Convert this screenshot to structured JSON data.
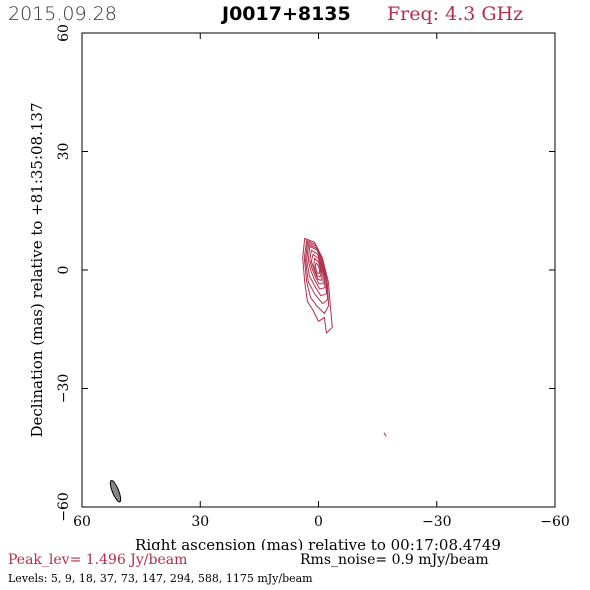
{
  "header": {
    "date": "2015.09.28",
    "source": "J0017+8135",
    "frequency": "Freq: 4.3 GHz"
  },
  "footer": {
    "peak": "Peak_lev=  1.496 Jy/beam",
    "rms": "Rms_noise=  0.9 mJy/beam",
    "levels": "Levels:   5,   9,  18,  37,  73,  147,  294,  588,  1175 mJy/beam"
  },
  "colors": {
    "contour": "#b0304c",
    "beam_fill": "#888888",
    "axis": "#000000"
  },
  "chart_data": {
    "type": "contour",
    "title": "J0017+8135",
    "xlabel": "Right ascension (mas) relative to 00:17:08.4749",
    "ylabel": "Declination (mas) relative to +81:35:08.137",
    "xlim": [
      60,
      -60
    ],
    "ylim": [
      -60,
      60
    ],
    "x_ticks": [
      "60",
      "30",
      "0",
      "−30",
      "−60"
    ],
    "y_ticks": [
      "60",
      "30",
      "0",
      "−30",
      "−60"
    ],
    "x_tick_values": [
      60,
      30,
      0,
      -30,
      -60
    ],
    "y_tick_values": [
      60,
      30,
      0,
      -30,
      -60
    ],
    "peak_level_jy_per_beam": 1.496,
    "rms_noise_mjy_per_beam": 0.9,
    "contour_levels_mjy_per_beam": [
      5,
      9,
      18,
      37,
      73,
      147,
      294,
      588,
      1175
    ],
    "contours": [
      {
        "level": 5,
        "points": [
          [
            3.5,
            8
          ],
          [
            1,
            7
          ],
          [
            -1,
            3
          ],
          [
            -2.5,
            -3
          ],
          [
            -3,
            -9
          ],
          [
            -3.5,
            -14.5
          ],
          [
            -2,
            -16
          ],
          [
            -1.5,
            -12
          ],
          [
            0,
            -13
          ],
          [
            1.5,
            -10
          ],
          [
            2.8,
            -8
          ],
          [
            3.5,
            -3
          ],
          [
            4,
            3
          ]
        ]
      },
      {
        "level": 9,
        "points": [
          [
            3,
            7.5
          ],
          [
            0.8,
            6.5
          ],
          [
            -1,
            3
          ],
          [
            -2.2,
            -3
          ],
          [
            -2.6,
            -9
          ],
          [
            -1.5,
            -11
          ],
          [
            0.5,
            -9
          ],
          [
            2,
            -7
          ],
          [
            3,
            -3
          ],
          [
            3.6,
            3
          ]
        ]
      },
      {
        "level": 18,
        "points": [
          [
            2.8,
            7
          ],
          [
            0.6,
            6
          ],
          [
            -0.9,
            2.5
          ],
          [
            -2,
            -3
          ],
          [
            -2.3,
            -7.5
          ],
          [
            -1,
            -8.5
          ],
          [
            1,
            -6
          ],
          [
            2.6,
            -3
          ],
          [
            3.3,
            2.5
          ]
        ]
      },
      {
        "level": 37,
        "points": [
          [
            2.5,
            6.5
          ],
          [
            0.5,
            5.5
          ],
          [
            -0.8,
            2.5
          ],
          [
            -1.8,
            -2
          ],
          [
            -2,
            -6
          ],
          [
            -0.6,
            -6.5
          ],
          [
            1,
            -4
          ],
          [
            2.3,
            -1.5
          ],
          [
            3,
            2.5
          ]
        ]
      },
      {
        "level": 73,
        "points": [
          [
            2.2,
            6
          ],
          [
            0.3,
            5
          ],
          [
            -0.7,
            2
          ],
          [
            -1.5,
            -1.5
          ],
          [
            -1.6,
            -4.5
          ],
          [
            -0.3,
            -4.8
          ],
          [
            1,
            -2.5
          ],
          [
            2,
            0
          ],
          [
            2.6,
            2.5
          ]
        ]
      },
      {
        "level": 147,
        "points": [
          [
            1.8,
            5
          ],
          [
            0.2,
            4
          ],
          [
            -0.6,
            1.5
          ],
          [
            -1.2,
            -1
          ],
          [
            -1.2,
            -3.5
          ],
          [
            -0.1,
            -3.5
          ],
          [
            0.9,
            -1.5
          ],
          [
            1.7,
            0.5
          ],
          [
            2.2,
            2.5
          ]
        ]
      },
      {
        "level": 294,
        "points": [
          [
            1.4,
            4
          ],
          [
            0.1,
            3
          ],
          [
            -0.5,
            1
          ],
          [
            -0.9,
            -1
          ],
          [
            -0.8,
            -2.6
          ],
          [
            0.1,
            -2.4
          ],
          [
            0.8,
            -0.8
          ],
          [
            1.4,
            0.8
          ],
          [
            1.8,
            2.2
          ]
        ]
      },
      {
        "level": 588,
        "points": [
          [
            1,
            3
          ],
          [
            0,
            2
          ],
          [
            -0.4,
            0.5
          ],
          [
            -0.6,
            -1
          ],
          [
            -0.4,
            -1.8
          ],
          [
            0.3,
            -1.4
          ],
          [
            0.8,
            -0.2
          ],
          [
            1.2,
            1.2
          ]
        ]
      },
      {
        "level": 1175,
        "points": [
          [
            0.6,
            1.8
          ],
          [
            0,
            1
          ],
          [
            -0.3,
            0
          ],
          [
            -0.2,
            -0.9
          ],
          [
            0.3,
            -0.7
          ],
          [
            0.6,
            0.2
          ],
          [
            0.8,
            1
          ]
        ]
      }
    ],
    "secondary_feature": {
      "points": [
        [
          -16.6,
          -41.2
        ],
        [
          -17.2,
          -42.1
        ]
      ]
    },
    "beam": {
      "x": 51.5,
      "y": -56,
      "major_mas": 5.8,
      "minor_mas": 1.6,
      "pa_deg": 158
    }
  }
}
